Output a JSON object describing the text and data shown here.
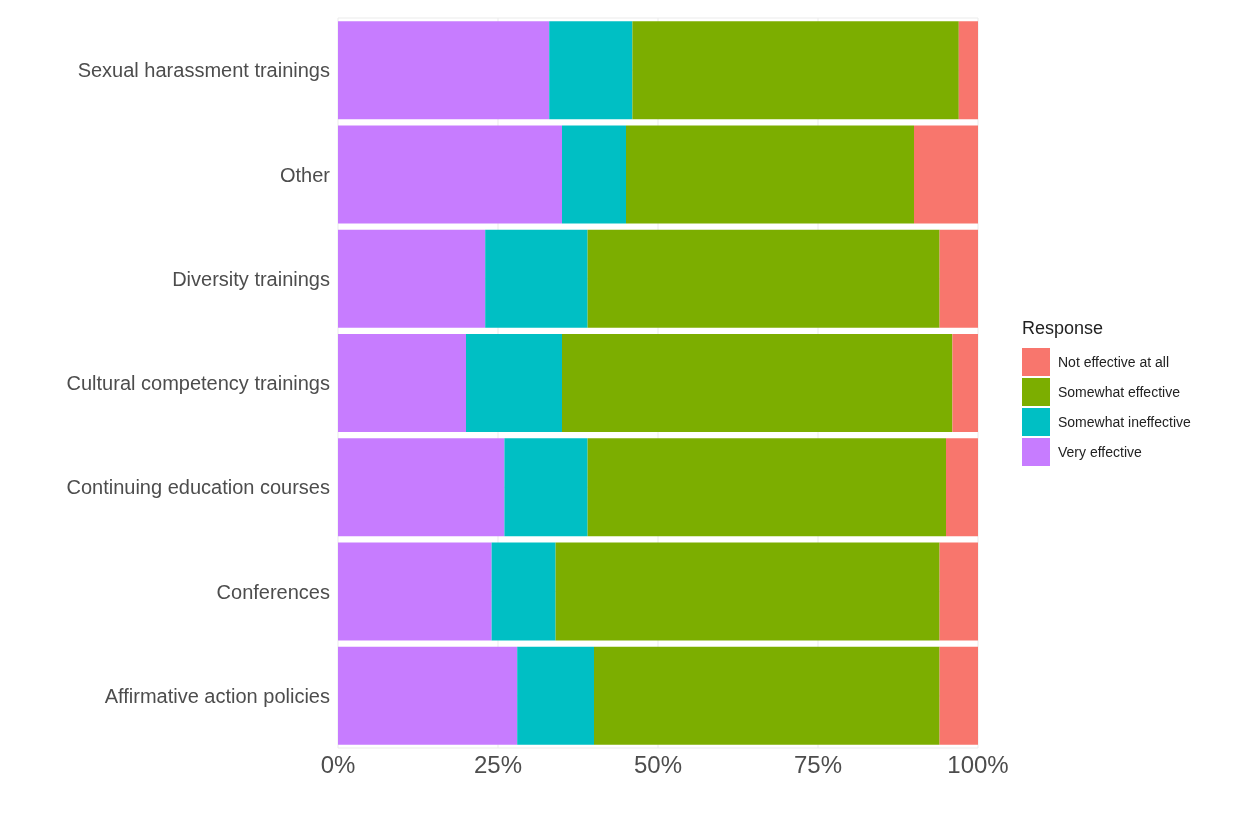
{
  "chart_data": {
    "type": "bar",
    "orientation": "horizontal",
    "stacked": true,
    "legend_title": "Response",
    "legend": "right",
    "grid": true,
    "categories": [
      "Sexual harassment trainings",
      "Other",
      "Diversity trainings",
      "Cultural competency trainings",
      "Continuing education courses",
      "Conferences",
      "Affirmative action policies"
    ],
    "xlim": [
      0,
      100
    ],
    "xticks": [
      {
        "value": 0,
        "label": "0%"
      },
      {
        "value": 25,
        "label": "25%"
      },
      {
        "value": 50,
        "label": "50%"
      },
      {
        "value": 75,
        "label": "75%"
      },
      {
        "value": 100,
        "label": "100%"
      }
    ],
    "series": [
      {
        "name": "Very effective",
        "color": "#c77cff",
        "values": [
          33,
          35,
          23,
          20,
          26,
          24,
          28
        ]
      },
      {
        "name": "Somewhat ineffective",
        "color": "#00bfc4",
        "values": [
          13,
          10,
          16,
          15,
          13,
          10,
          12
        ]
      },
      {
        "name": "Somewhat effective",
        "color": "#7cae00",
        "values": [
          51,
          45,
          55,
          61,
          56,
          60,
          54
        ]
      },
      {
        "name": "Not effective at all",
        "color": "#f8766d",
        "values": [
          3,
          10,
          6,
          4,
          5,
          6,
          6
        ]
      }
    ]
  }
}
